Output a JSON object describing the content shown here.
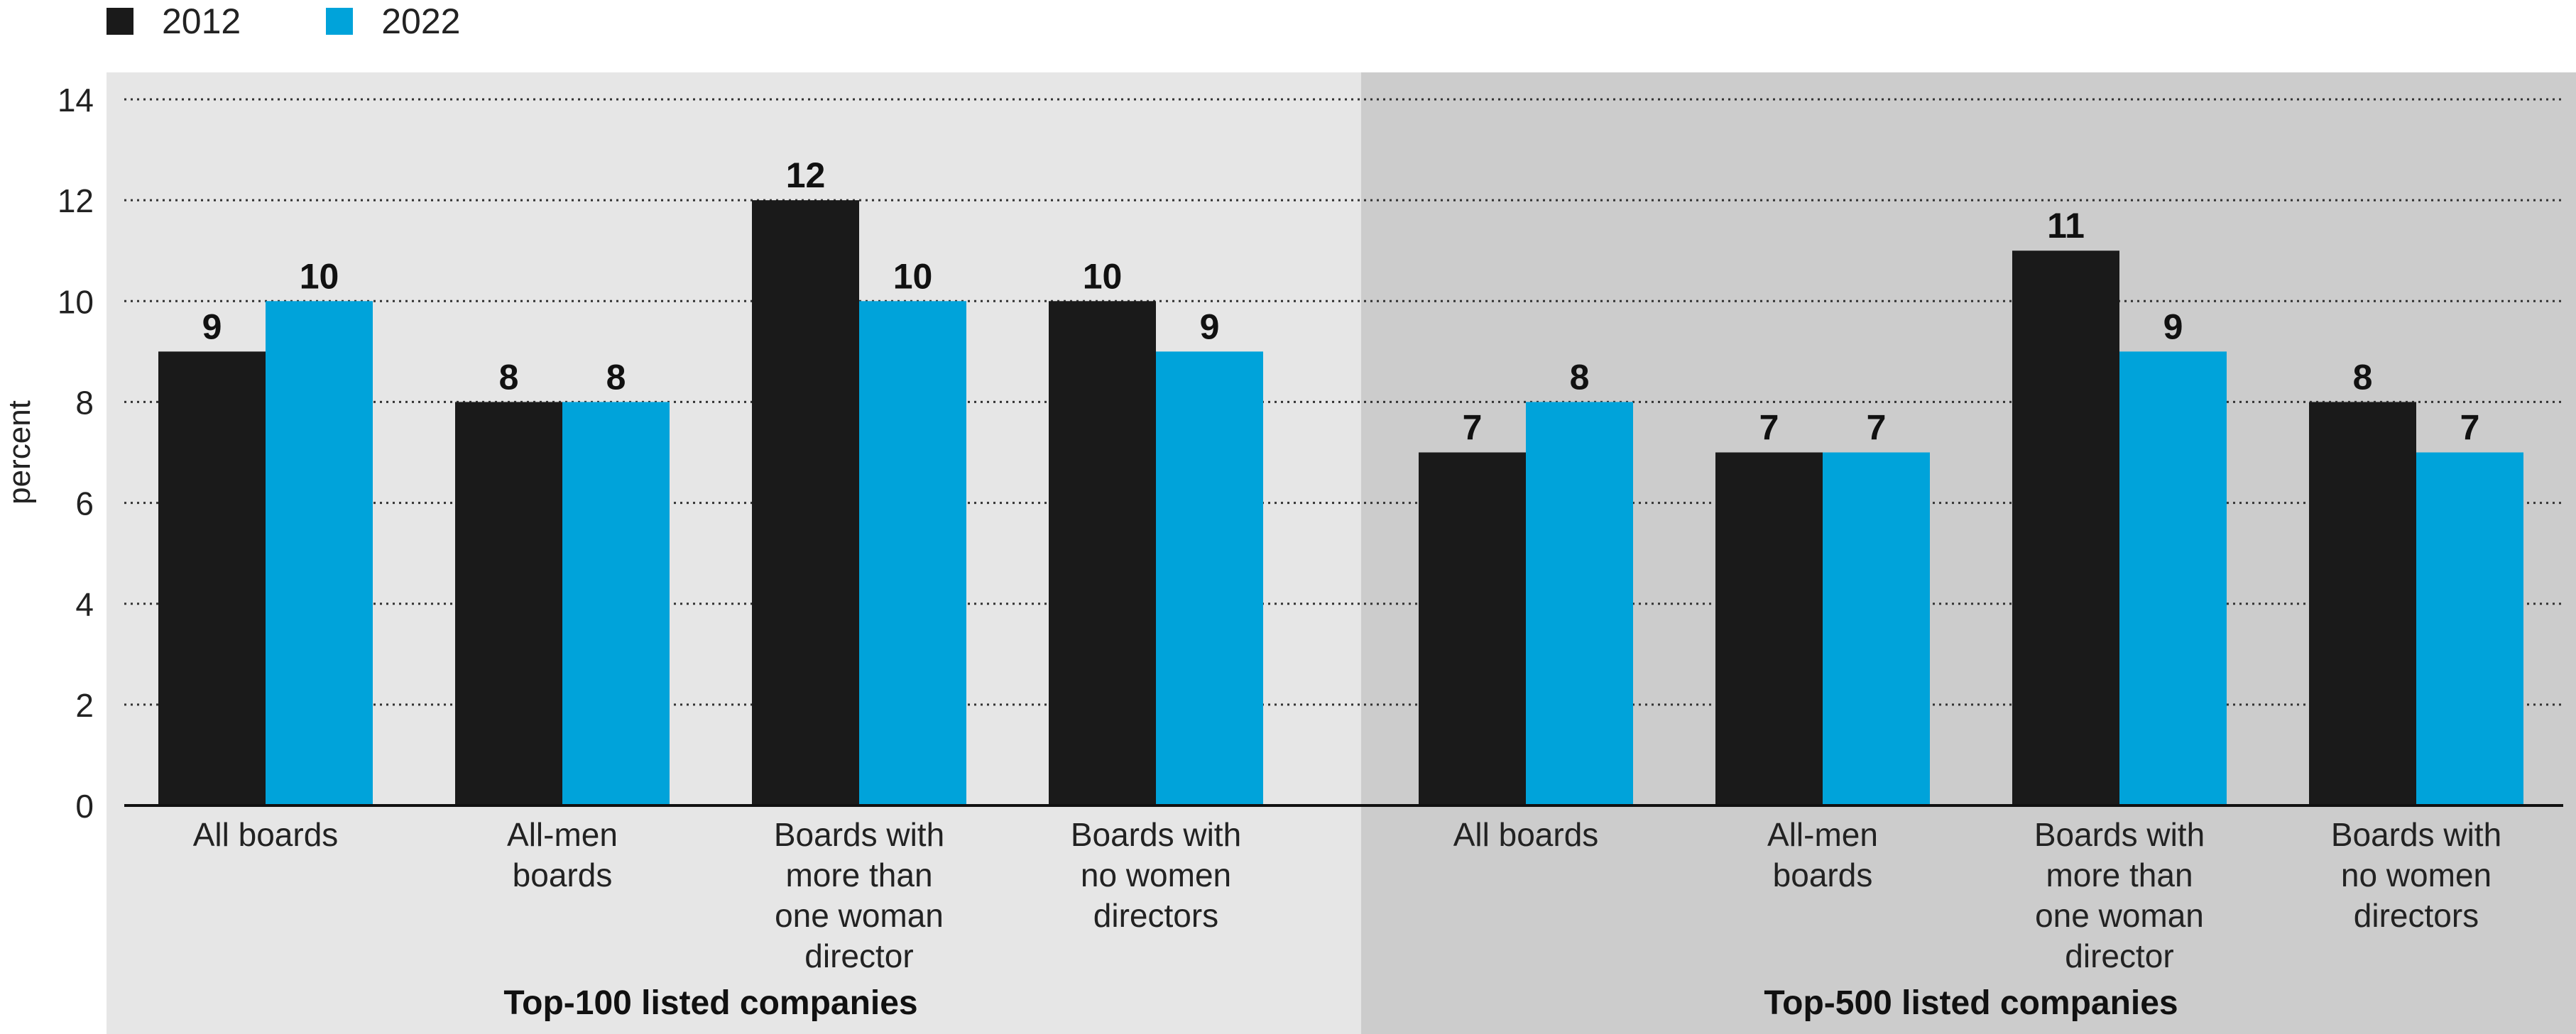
{
  "chart_data": {
    "type": "bar",
    "ylabel": "percent",
    "ylim": [
      0,
      14
    ],
    "yticks": [
      0,
      2,
      4,
      6,
      8,
      10,
      12,
      14
    ],
    "grid": true,
    "legend_position": "top-left",
    "groups": [
      {
        "name": "Top-100 listed companies",
        "categories": [
          "All boards",
          "All-men boards",
          "Boards with more than one woman director",
          "Boards with no women directors"
        ],
        "category_lines": [
          [
            "All boards"
          ],
          [
            "All-men",
            "boards"
          ],
          [
            "Boards with",
            "more than",
            "one woman",
            "director"
          ],
          [
            "Boards with",
            "no women",
            "directors"
          ]
        ],
        "series": [
          {
            "name": "2012",
            "values": [
              9,
              8,
              12,
              10
            ]
          },
          {
            "name": "2022",
            "values": [
              10,
              8,
              10,
              9
            ]
          }
        ]
      },
      {
        "name": "Top-500 listed companies",
        "categories": [
          "All boards",
          "All-men boards",
          "Boards with more than one woman director",
          "Boards with no women directors"
        ],
        "category_lines": [
          [
            "All boards"
          ],
          [
            "All-men",
            "boards"
          ],
          [
            "Boards with",
            "more than",
            "one woman",
            "director"
          ],
          [
            "Boards with",
            "no women",
            "directors"
          ]
        ],
        "series": [
          {
            "name": "2012",
            "values": [
              7,
              7,
              11,
              8
            ]
          },
          {
            "name": "2022",
            "values": [
              8,
              7,
              9,
              7
            ]
          }
        ]
      }
    ],
    "colors": {
      "2012": "#1a1a1a",
      "2022": "#00a3da"
    },
    "panel_colors": [
      "#e6e6e6",
      "#cccccc"
    ]
  },
  "legend": {
    "items": [
      {
        "label": "2012",
        "color": "#1a1a1a"
      },
      {
        "label": "2022",
        "color": "#00a3da"
      }
    ]
  }
}
